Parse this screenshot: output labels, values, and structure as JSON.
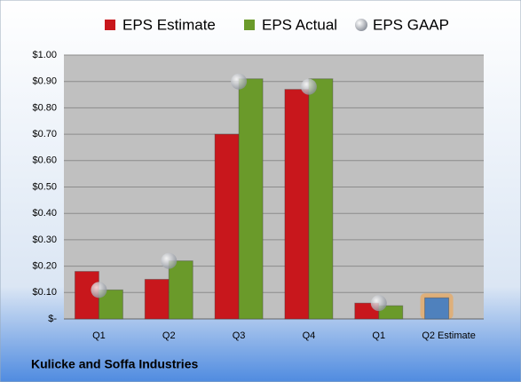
{
  "chart_data": {
    "type": "bar",
    "footer": "Kulicke and Soffa Industries",
    "categories": [
      "Q1",
      "Q2",
      "Q3",
      "Q4",
      "Q1",
      "Q2 Estimate"
    ],
    "series": [
      {
        "name": "EPS Estimate",
        "color": "#c8171c",
        "colors": [
          "#c8171c",
          "#c8171c",
          "#c8171c",
          "#c8171c",
          "#c8171c",
          "#4f81bd"
        ],
        "values": [
          0.18,
          0.15,
          0.7,
          0.87,
          0.06,
          0.08
        ]
      },
      {
        "name": "EPS Actual",
        "color": "#6a9a2a",
        "values": [
          0.11,
          0.22,
          0.91,
          0.91,
          0.05,
          null
        ]
      },
      {
        "name": "EPS GAAP",
        "color": "#b8bcc4",
        "type": "scatter",
        "values": [
          0.11,
          0.22,
          0.9,
          0.88,
          0.06,
          null
        ]
      }
    ],
    "ylim": [
      0,
      1
    ],
    "yticks": [
      {
        "value": 0,
        "label": "$-"
      },
      {
        "value": 0.1,
        "label": "$0.10"
      },
      {
        "value": 0.2,
        "label": "$0.20"
      },
      {
        "value": 0.3,
        "label": "$0.30"
      },
      {
        "value": 0.4,
        "label": "$0.40"
      },
      {
        "value": 0.5,
        "label": "$0.50"
      },
      {
        "value": 0.6,
        "label": "$0.60"
      },
      {
        "value": 0.7,
        "label": "$0.70"
      },
      {
        "value": 0.8,
        "label": "$0.80"
      },
      {
        "value": 0.9,
        "label": "$0.90"
      },
      {
        "value": 1,
        "label": "$1.00"
      }
    ],
    "grid": true
  }
}
